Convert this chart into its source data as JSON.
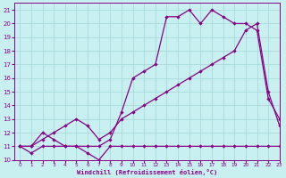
{
  "xlabel": "Windchill (Refroidissement éolien,°C)",
  "background_color": "#c8f0f0",
  "grid_color": "#a8dada",
  "line_color": "#880088",
  "xlim": [
    -0.5,
    23
  ],
  "ylim": [
    10,
    21.5
  ],
  "yticks": [
    10,
    11,
    12,
    13,
    14,
    15,
    16,
    17,
    18,
    19,
    20,
    21
  ],
  "xticks": [
    0,
    1,
    2,
    3,
    4,
    5,
    6,
    7,
    8,
    9,
    10,
    11,
    12,
    13,
    14,
    15,
    16,
    17,
    18,
    19,
    20,
    21,
    22,
    23
  ],
  "line1_x": [
    0,
    1,
    2,
    3,
    4,
    5,
    6,
    7,
    8,
    9,
    10,
    11,
    12,
    13,
    14,
    15,
    16,
    17,
    18,
    19,
    20,
    21,
    22,
    23
  ],
  "line1_y": [
    11,
    10.5,
    11,
    11,
    11,
    11,
    10.5,
    10,
    11,
    11,
    11,
    11,
    11,
    11,
    11,
    11,
    11,
    11,
    11,
    11,
    11,
    11,
    11,
    11
  ],
  "line2_x": [
    0,
    1,
    2,
    3,
    4,
    5,
    6,
    7,
    8,
    9,
    10,
    11,
    12,
    13,
    14,
    15,
    16,
    17,
    18,
    19,
    20,
    21,
    22,
    23
  ],
  "line2_y": [
    11,
    11,
    11.5,
    12,
    12.5,
    13,
    12.5,
    11.5,
    12,
    13,
    13.5,
    14,
    14.5,
    15,
    15.5,
    16,
    16.5,
    17,
    17.5,
    18,
    19.5,
    20,
    15,
    12.5
  ],
  "line3_x": [
    0,
    1,
    2,
    3,
    4,
    5,
    6,
    7,
    8,
    9,
    10,
    11,
    12,
    13,
    14,
    15,
    16,
    17,
    18,
    19,
    20,
    21,
    22,
    23
  ],
  "line3_y": [
    11,
    11,
    12,
    11.5,
    11,
    11,
    11,
    11,
    11.5,
    13.5,
    16,
    16.5,
    17,
    20.5,
    20.5,
    21,
    20,
    21,
    20.5,
    20,
    20,
    19.5,
    14.5,
    13
  ]
}
